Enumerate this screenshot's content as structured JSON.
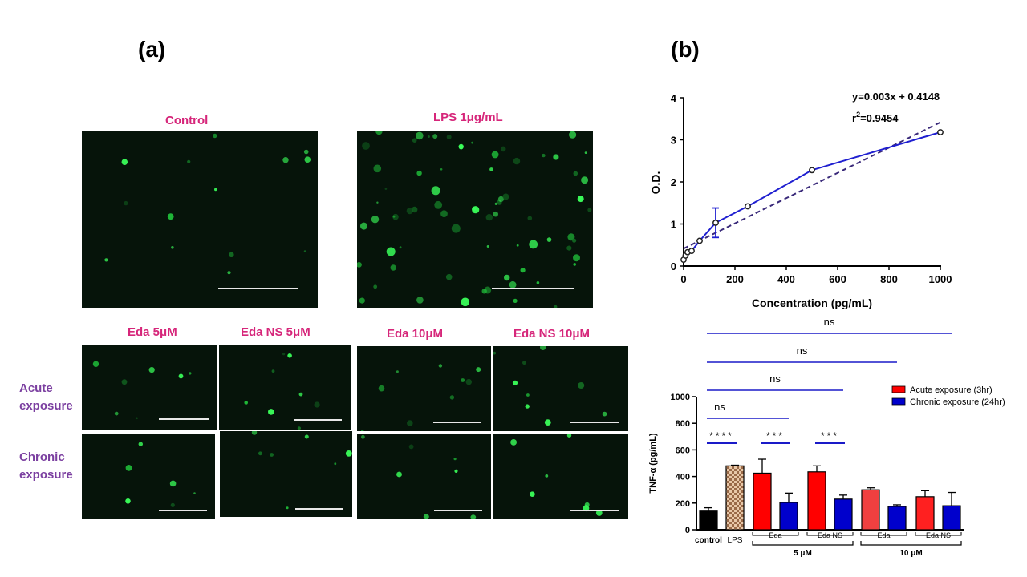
{
  "panels": {
    "a": "(a)",
    "b": "(b)"
  },
  "images": {
    "control": "Control",
    "lps": "LPS 1μg/mL",
    "eda5": "Eda 5μM",
    "edans5": "Eda NS 5μM",
    "eda10": "Eda 10μM",
    "edans10": "Eda NS 10μM"
  },
  "rows": {
    "acute_line1": "Acute",
    "acute_line2": "exposure",
    "chronic_line1": "Chronic",
    "chronic_line2": "exposure"
  },
  "chart_data": [
    {
      "type": "line",
      "xlabel": "Concentration (pg/mL)",
      "ylabel": "O.D.",
      "xlim": [
        0,
        1000
      ],
      "ylim": [
        0,
        4
      ],
      "xticks": [
        0,
        200,
        400,
        600,
        800,
        1000
      ],
      "yticks": [
        0,
        1,
        2,
        3,
        4
      ],
      "equation": "y=0.003x + 0.4148",
      "r2_prefix": "r",
      "r2_sup": "2",
      "r2_value": "=0.9454",
      "series": [
        {
          "x": [
            0,
            7.8,
            15.6,
            31.25,
            62.5,
            125,
            250,
            500,
            1000
          ],
          "y": [
            0.15,
            0.25,
            0.33,
            0.36,
            0.6,
            1.03,
            1.42,
            2.28,
            3.18
          ],
          "error": [
            0.05,
            0.05,
            0.05,
            0.04,
            0.06,
            0.35,
            0.07,
            0.03,
            0.03
          ],
          "color": "#1f1fd0"
        }
      ],
      "fit": {
        "slope": 0.003,
        "intercept": 0.4148,
        "color": "#3a2a7a"
      }
    },
    {
      "type": "bar",
      "ylabel": "TNF-α (pg/mL)",
      "ylim": [
        0,
        1000
      ],
      "yticks": [
        0,
        200,
        400,
        600,
        800,
        1000
      ],
      "legend": [
        {
          "name": "Acute exposure (3hr)",
          "color": "#ff0000"
        },
        {
          "name": "Chronic exposure (24hr)",
          "color": "#0000cc"
        }
      ],
      "bars": [
        {
          "label": "control",
          "value": 140,
          "error": 25,
          "color": "#000000",
          "pattern": "solid"
        },
        {
          "label": "LPS",
          "value": 480,
          "error": 5,
          "color": "#d9a878",
          "pattern": "checker"
        },
        {
          "label": "",
          "value": 425,
          "error": 105,
          "color": "#ff0000",
          "pattern": "solid"
        },
        {
          "label": "",
          "value": 205,
          "error": 70,
          "color": "#0000cc",
          "pattern": "solid"
        },
        {
          "label": "",
          "value": 435,
          "error": 45,
          "color": "#ff0000",
          "pattern": "solid"
        },
        {
          "label": "",
          "value": 230,
          "error": 30,
          "color": "#0000cc",
          "pattern": "solid"
        },
        {
          "label": "",
          "value": 300,
          "error": 15,
          "color": "#f04040",
          "pattern": "solid"
        },
        {
          "label": "",
          "value": 175,
          "error": 12,
          "color": "#0000cc",
          "pattern": "solid"
        },
        {
          "label": "",
          "value": 248,
          "error": 45,
          "color": "#ff2020",
          "pattern": "solid"
        },
        {
          "label": "",
          "value": 180,
          "error": 100,
          "color": "#0000cc",
          "pattern": "solid"
        }
      ],
      "group_labels": [
        {
          "text": "Eda",
          "from_bar": 2,
          "to_bar": 3
        },
        {
          "text": "Eda NS",
          "from_bar": 4,
          "to_bar": 5
        },
        {
          "text": "Eda",
          "from_bar": 6,
          "to_bar": 7
        },
        {
          "text": "Eda NS",
          "from_bar": 8,
          "to_bar": 9
        }
      ],
      "concentration_labels": [
        {
          "text": "5 μM",
          "from_bar": 2,
          "to_bar": 5
        },
        {
          "text": "10 μM",
          "from_bar": 6,
          "to_bar": 9
        }
      ],
      "significance": [
        {
          "text": "****",
          "from_bar": 0,
          "to_bar": 1,
          "level": 0
        },
        {
          "text": "***",
          "from_bar": 2,
          "to_bar": 3,
          "level": 0
        },
        {
          "text": "***",
          "from_bar": 4,
          "to_bar": 5,
          "level": 0
        },
        {
          "text": "ns",
          "from_bar": 0,
          "to_bar": 3,
          "level": 1
        },
        {
          "text": "ns",
          "from_bar": 0,
          "to_bar": 5,
          "level": 2
        },
        {
          "text": "ns",
          "from_bar": 0,
          "to_bar": 7,
          "level": 3
        },
        {
          "text": "ns",
          "from_bar": 0,
          "to_bar": 9,
          "level": 4
        }
      ]
    }
  ]
}
